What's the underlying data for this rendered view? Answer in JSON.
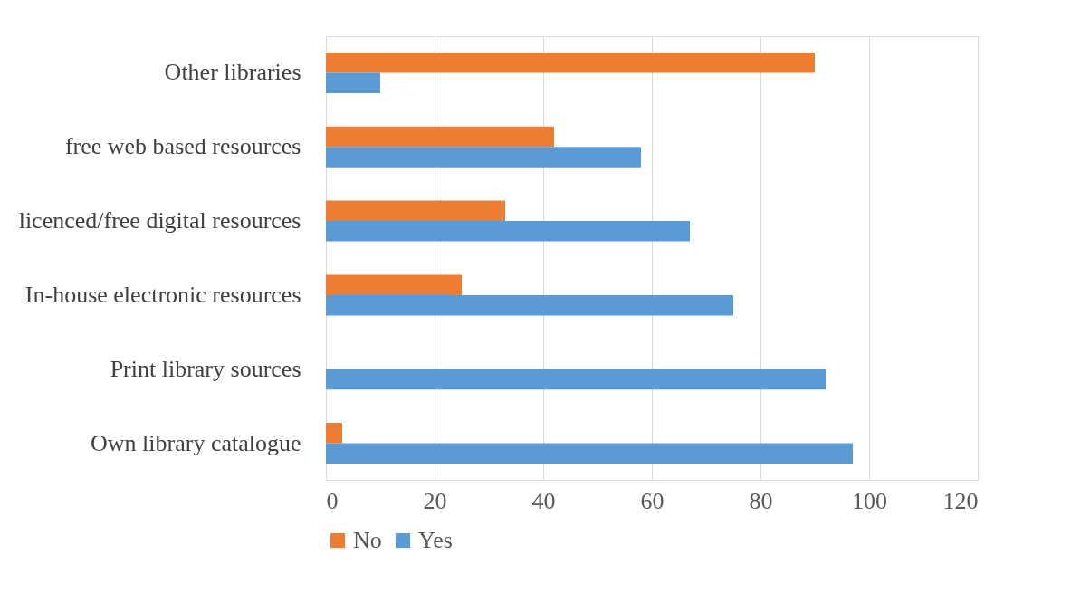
{
  "chart_data": {
    "type": "bar",
    "orientation": "horizontal",
    "categories": [
      "Other libraries",
      "free web based resources",
      "licenced/free digital resources",
      "In-house electronic resources",
      "Print library sources",
      "Own library catalogue"
    ],
    "series": [
      {
        "name": "No",
        "color": "#ed7d31",
        "values": [
          90,
          42,
          33,
          25,
          null,
          3
        ]
      },
      {
        "name": "Yes",
        "color": "#5b9bd5",
        "values": [
          10,
          58,
          67,
          75,
          92,
          97
        ]
      }
    ],
    "xlim": [
      0,
      120
    ],
    "xticks": [
      0,
      20,
      40,
      60,
      80,
      100,
      120
    ],
    "grid": "x",
    "legend": "bottom"
  }
}
